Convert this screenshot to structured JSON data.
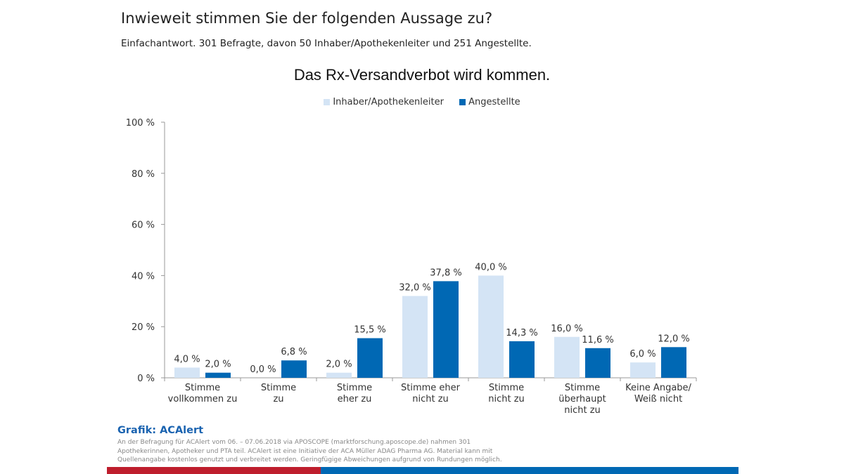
{
  "header": {
    "question": "Inwieweit stimmen Sie der folgenden Aussage zu?",
    "subtitle": "Einfachantwort. 301 Befragte, davon 50 Inhaber/Apothekenleiter und 251 Angestellte."
  },
  "chart_data": {
    "type": "bar",
    "title": "Das Rx-Versandverbot wird kommen.",
    "xlabel": "",
    "ylabel": "",
    "ylim": [
      0,
      100
    ],
    "yticks": [
      0,
      20,
      40,
      60,
      80,
      100
    ],
    "ytick_labels": [
      "0 %",
      "20 %",
      "40 %",
      "60 %",
      "80 %",
      "100 %"
    ],
    "grid": false,
    "legend_position": "top-center",
    "categories": [
      [
        "Stimme",
        "vollkommen zu"
      ],
      [
        "Stimme",
        "zu"
      ],
      [
        "Stimme",
        "eher zu"
      ],
      [
        "Stimme eher",
        "nicht zu"
      ],
      [
        "Stimme",
        "nicht zu"
      ],
      [
        "Stimme",
        "überhaupt",
        "nicht zu"
      ],
      [
        "Keine Angabe/",
        "Weiß nicht"
      ]
    ],
    "series": [
      {
        "name": "Inhaber/Apothekenleiter",
        "color": "#d4e4f5",
        "values": [
          4.0,
          0.0,
          2.0,
          32.0,
          40.0,
          16.0,
          6.0
        ],
        "labels": [
          "4,0 %",
          "0,0 %",
          "2,0 %",
          "32,0 %",
          "40,0 %",
          "16,0 %",
          "6,0 %"
        ]
      },
      {
        "name": "Angestellte",
        "color": "#0068b4",
        "values": [
          2.0,
          6.8,
          15.5,
          37.8,
          14.3,
          11.6,
          12.0
        ],
        "labels": [
          "2,0 %",
          "6,8 %",
          "15,5 %",
          "37,8 %",
          "14,3 %",
          "11,6 %",
          "12,0 %"
        ]
      }
    ]
  },
  "footer": {
    "credit": "Grafik: ACAlert",
    "note": "An der Befragung für ACAlert vom 06. – 07.06.2018 via APOSCOPE (marktforschung.aposcope.de) nahmen 301 Apothekerinnen, Apotheker und PTA teil. ACAlert ist eine Initiative der ACA Müller ADAG Pharma AG. Material kann mit Quellenangabe kostenlos genutzt und verbreitet werden. Geringfügige Abweichungen aufgrund von Rundungen möglich.",
    "brand_colors": [
      "#be1e2d",
      "#0068b4"
    ]
  }
}
